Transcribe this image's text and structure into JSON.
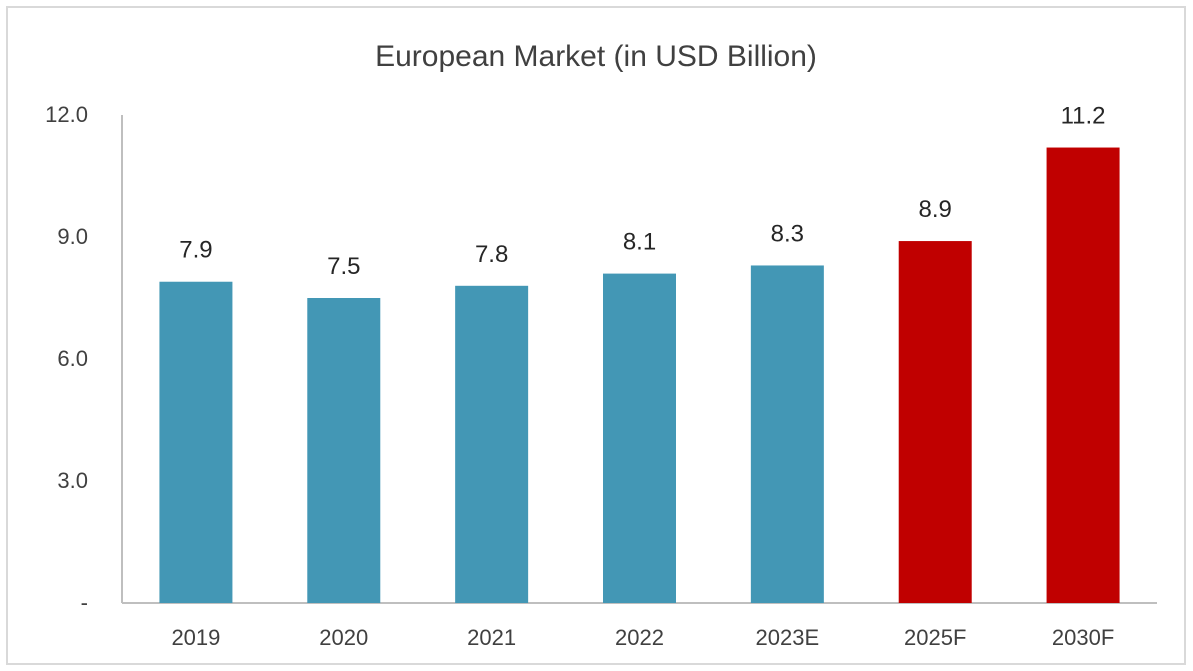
{
  "chart_data": {
    "type": "bar",
    "title": "European Market (in USD Billion)",
    "xlabel": "",
    "ylabel": "",
    "categories": [
      "2019",
      "2020",
      "2021",
      "2022",
      "2023E",
      "2025F",
      "2030F"
    ],
    "values": [
      7.9,
      7.5,
      7.8,
      8.1,
      8.3,
      8.9,
      11.2
    ],
    "data_labels": [
      "7.9",
      "7.5",
      "7.8",
      "8.1",
      "8.3",
      "8.9",
      "11.2"
    ],
    "ylim": [
      0,
      12
    ],
    "yticks": [
      {
        "value": 0,
        "label": "-"
      },
      {
        "value": 3,
        "label": "3.0"
      },
      {
        "value": 6,
        "label": "6.0"
      },
      {
        "value": 9,
        "label": "9.0"
      },
      {
        "value": 12,
        "label": "12.0"
      }
    ],
    "grid": false,
    "legend": "none",
    "colors": {
      "historical": "#4397b5",
      "forecast": "#c00000",
      "axis": "#bfbfbf",
      "text": "#404040"
    },
    "bar_colors": [
      "#4397b5",
      "#4397b5",
      "#4397b5",
      "#4397b5",
      "#4397b5",
      "#c00000",
      "#c00000"
    ]
  }
}
